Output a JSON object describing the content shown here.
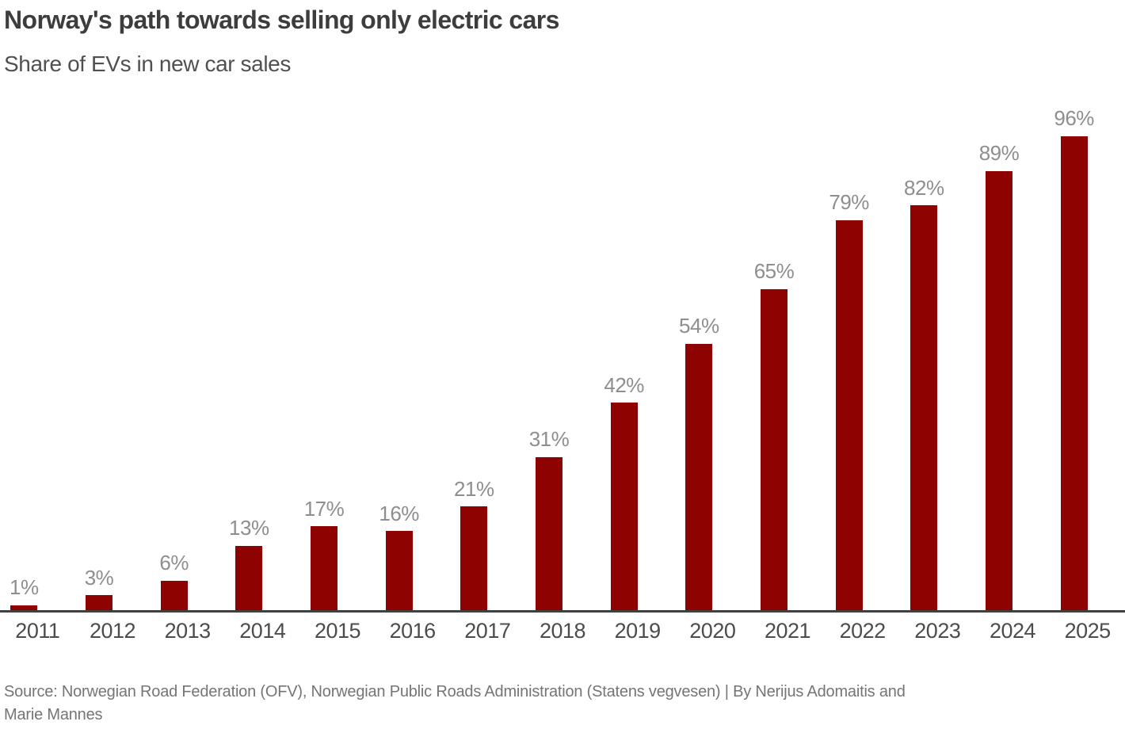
{
  "header": {
    "title": "Norway's path towards selling only electric cars",
    "subtitle": "Share of EVs in new car sales"
  },
  "chart_data": {
    "type": "bar",
    "title": "Norway's path towards selling only electric cars",
    "subtitle": "Share of EVs in new car sales",
    "categories": [
      "2011",
      "2012",
      "2013",
      "2014",
      "2015",
      "2016",
      "2017",
      "2018",
      "2019",
      "2020",
      "2021",
      "2022",
      "2023",
      "2024",
      "2025"
    ],
    "values": [
      1,
      3,
      6,
      13,
      17,
      16,
      21,
      31,
      42,
      54,
      65,
      79,
      82,
      89,
      96
    ],
    "bar_labels": [
      "1%",
      "3%",
      "6%",
      "13%",
      "17%",
      "16%",
      "21%",
      "31%",
      "42%",
      "54%",
      "65%",
      "79%",
      "82%",
      "89%",
      "96%"
    ],
    "xlabel": "",
    "ylabel": "",
    "ylim": [
      0,
      100
    ],
    "grid": false,
    "legend": false,
    "colors": {
      "bar": "#8e0202",
      "axis_line": "#404040",
      "value_label": "#8e8e8e",
      "tick_label": "#4c4c4c"
    }
  },
  "footer": {
    "source_line1": "Source: Norwegian Road Federation (OFV), Norwegian Public Roads Administration (Statens vegvesen)  | By Nerijus Adomaitis and",
    "source_line2": "Marie Mannes"
  }
}
